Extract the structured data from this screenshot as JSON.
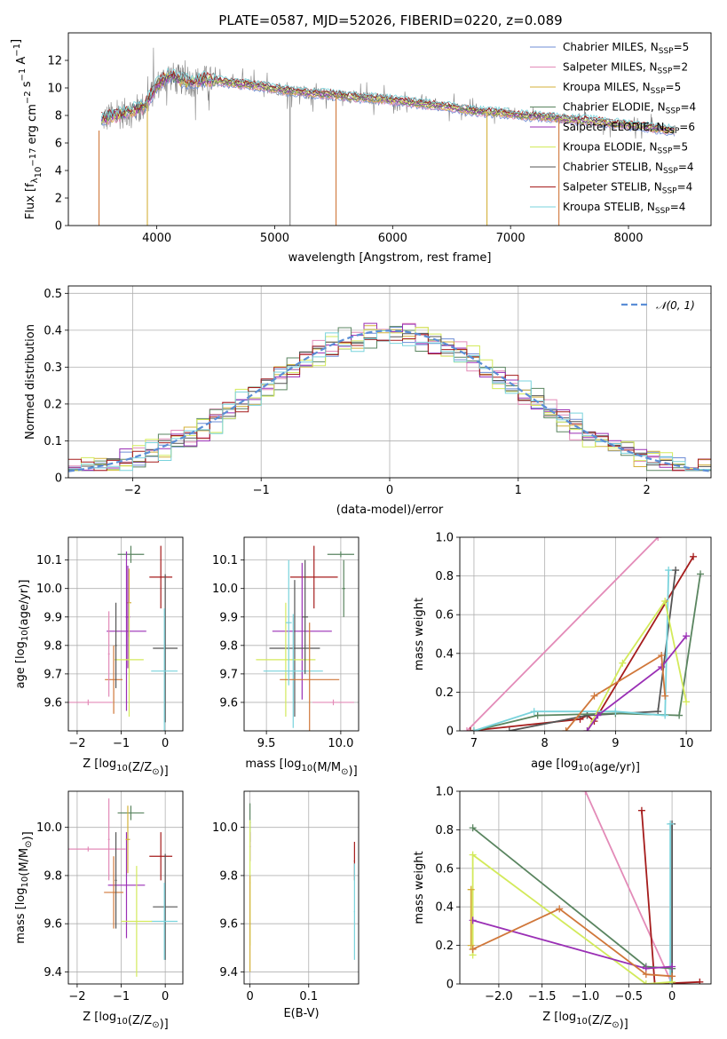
{
  "title": "PLATE=0587, MJD=52026, FIBERID=0220, z=0.089",
  "colors": {
    "chabrier_miles": "#6f8ed6",
    "salpeter_miles": "#e38bb8",
    "kroupa_miles": "#d4b13a",
    "chabrier_elodie": "#5a8560",
    "salpeter_elodie": "#9a2fb5",
    "kroupa_elodie": "#d3ea5b",
    "chabrier_stelib": "#555555",
    "salpeter_stelib": "#a51c1c",
    "kroupa_stelib": "#79d3dc",
    "orange": "#d0773a",
    "gray_spec": "#808080",
    "normal": "#5b8ed6"
  },
  "chart_data": [
    {
      "id": "spectrum",
      "type": "line",
      "xlabel": "wavelength [Angstrom, rest frame]",
      "ylabel": "Flux [f",
      "ylabel_parts": [
        "Flux [f",
        "λ",
        "10",
        "−17",
        " erg cm",
        "−2",
        " s",
        "−1",
        " A",
        "−1",
        "]"
      ],
      "xlim": [
        3250,
        8700
      ],
      "ylim": [
        0,
        14
      ],
      "xticks": [
        4000,
        5000,
        6000,
        7000,
        8000
      ],
      "yticks": [
        0,
        2,
        4,
        6,
        8,
        10,
        12
      ],
      "legend": [
        {
          "text": "Chabrier MILES, N",
          "sub": "SSP",
          "tail": "=5",
          "color": "#6f8ed6"
        },
        {
          "text": "Salpeter MILES, N",
          "sub": "SSP",
          "tail": "=2",
          "color": "#e38bb8"
        },
        {
          "text": "Kroupa MILES, N",
          "sub": "SSP",
          "tail": "=5",
          "color": "#d4b13a"
        },
        {
          "text": "Chabrier ELODIE, N",
          "sub": "SSP",
          "tail": "=4",
          "color": "#5a8560"
        },
        {
          "text": "Salpeter ELODIE, N",
          "sub": "SSP",
          "tail": "=6",
          "color": "#9a2fb5"
        },
        {
          "text": "Kroupa ELODIE, N",
          "sub": "SSP",
          "tail": "=5",
          "color": "#d3ea5b"
        },
        {
          "text": "Chabrier STELIB, N",
          "sub": "SSP",
          "tail": "=4",
          "color": "#555555"
        },
        {
          "text": "Salpeter STELIB, N",
          "sub": "SSP",
          "tail": "=4",
          "color": "#a51c1c"
        },
        {
          "text": "Kroupa STELIB, N",
          "sub": "SSP",
          "tail": "=4",
          "color": "#79d3dc"
        }
      ],
      "model_curve": {
        "x": [
          3530,
          3600,
          3700,
          3800,
          3900,
          4000,
          4100,
          4200,
          4300,
          4400,
          4500,
          4700,
          4900,
          5100,
          5300,
          5500,
          5700,
          5900,
          6100,
          6300,
          6500,
          6700,
          6900,
          7100,
          7300,
          7500,
          7700,
          7900,
          8100,
          8300,
          8400
        ],
        "y": [
          7.7,
          7.9,
          8.1,
          8.4,
          8.7,
          10.2,
          10.9,
          10.6,
          10.4,
          10.6,
          10.5,
          10.3,
          10.1,
          9.8,
          9.6,
          9.5,
          9.3,
          9.2,
          9.0,
          8.8,
          8.6,
          8.3,
          8.2,
          8.0,
          7.9,
          7.7,
          7.6,
          7.4,
          7.2,
          7.0,
          6.9
        ]
      },
      "dips": [
        {
          "x": 3510,
          "y": 0.0,
          "color": "#d0773a"
        },
        {
          "x": 3920,
          "y": 0.0,
          "color": "#d4b13a"
        },
        {
          "x": 5130,
          "y": 0.0,
          "color": "#808080"
        },
        {
          "x": 5520,
          "y": 0.0,
          "color": "#d0773a"
        },
        {
          "x": 6800,
          "y": 0.0,
          "color": "#d4b13a"
        },
        {
          "x": 7410,
          "y": 0.0,
          "color": "#d0773a"
        }
      ]
    },
    {
      "id": "residuals",
      "type": "histogram",
      "xlabel": "(data-model)/error",
      "ylabel": "Normed distribution",
      "xlim": [
        -2.5,
        2.5
      ],
      "ylim": [
        0,
        0.52
      ],
      "xticks": [
        -2,
        -1,
        0,
        1,
        2
      ],
      "yticks": [
        0.0,
        0.1,
        0.2,
        0.3,
        0.4,
        0.5
      ],
      "legend_label": "𝒩(0, 1)",
      "bin_width": 0.1,
      "bin_start": -2.5,
      "series_offsets": [
        0.0,
        0.012,
        -0.01,
        0.018,
        -0.015,
        0.02,
        -0.006,
        0.009,
        -0.02
      ]
    },
    {
      "id": "age_vs_Z",
      "type": "errorbar",
      "xlabel": "Z [log",
      "xlabel_parts": [
        "Z [log",
        "10",
        "(Z/Z",
        "⊙",
        ")]"
      ],
      "ylabel_parts": [
        "age  [log",
        "10",
        "(age/yr)]"
      ],
      "xlim": [
        -2.2,
        0.4
      ],
      "ylim": [
        9.5,
        10.18
      ],
      "xticks": [
        -2,
        -1,
        0
      ],
      "yticks": [
        9.6,
        9.7,
        9.8,
        9.9,
        10.0,
        10.1
      ],
      "points": [
        {
          "x": -0.78,
          "xerr": 0.3,
          "y": 10.12,
          "yerr": 0.03,
          "color": "#5a8560"
        },
        {
          "x": -0.82,
          "xerr": 0.05,
          "y": 9.95,
          "yerr": 0.12,
          "color": "#d4b13a"
        },
        {
          "x": -0.85,
          "xerr": 0.05,
          "y": 9.9,
          "yerr": 0.18,
          "color": "#9a2fb5"
        },
        {
          "x": -0.1,
          "xerr": 0.26,
          "y": 10.04,
          "yerr": 0.11,
          "color": "#a51c1c"
        },
        {
          "x": 0.0,
          "xerr": 0.28,
          "y": 9.79,
          "yerr": 0.26,
          "color": "#555555"
        },
        {
          "x": -0.02,
          "xerr": 0.3,
          "y": 9.71,
          "yerr": 0.22,
          "color": "#79d3dc"
        },
        {
          "x": -0.88,
          "xerr": 0.45,
          "y": 9.85,
          "yerr": 0.28,
          "color": "#9a2fb5"
        },
        {
          "x": -0.82,
          "xerr": 0.33,
          "y": 9.75,
          "yerr": 0.2,
          "color": "#d3ea5b"
        },
        {
          "x": -1.17,
          "xerr": 0.2,
          "y": 9.68,
          "yerr": 0.12,
          "color": "#d0773a"
        },
        {
          "x": -1.75,
          "xerr": 0.55,
          "y": 9.6,
          "yerr": 0.01,
          "color": "#e38bb8"
        },
        {
          "x": -1.28,
          "xerr": 0.02,
          "y": 9.77,
          "yerr": 0.15,
          "color": "#e38bb8"
        },
        {
          "x": -1.12,
          "xerr": 0.02,
          "y": 9.8,
          "yerr": 0.15,
          "color": "#555555"
        }
      ]
    },
    {
      "id": "age_vs_mass",
      "type": "errorbar",
      "xlabel_parts": [
        "mass [log",
        "10",
        "(M/M",
        "⊙",
        ")]"
      ],
      "xlim": [
        9.35,
        10.12
      ],
      "ylim": [
        9.5,
        10.18
      ],
      "xticks": [
        9.5,
        10.0
      ],
      "yticks": [
        9.6,
        9.7,
        9.8,
        9.9,
        10.0,
        10.1
      ],
      "points": [
        {
          "x": 10.0,
          "xerr": 0.09,
          "y": 10.12,
          "yerr": 0.01,
          "color": "#5a8560"
        },
        {
          "x": 10.02,
          "xerr": 0.01,
          "y": 10.0,
          "yerr": 0.1,
          "color": "#5a8560"
        },
        {
          "x": 9.82,
          "xerr": 0.16,
          "y": 10.04,
          "yerr": 0.11,
          "color": "#a51c1c"
        },
        {
          "x": 9.74,
          "xerr": 0.2,
          "y": 9.85,
          "yerr": 0.24,
          "color": "#9a2fb5"
        },
        {
          "x": 9.69,
          "xerr": 0.17,
          "y": 9.79,
          "yerr": 0.24,
          "color": "#555555"
        },
        {
          "x": 9.63,
          "xerr": 0.2,
          "y": 9.75,
          "yerr": 0.2,
          "color": "#d3ea5b"
        },
        {
          "x": 9.68,
          "xerr": 0.2,
          "y": 9.71,
          "yerr": 0.2,
          "color": "#79d3dc"
        },
        {
          "x": 9.79,
          "xerr": 0.2,
          "y": 9.68,
          "yerr": 0.2,
          "color": "#d0773a"
        },
        {
          "x": 9.95,
          "xerr": 0.14,
          "y": 9.6,
          "yerr": 0.01,
          "color": "#e38bb8"
        },
        {
          "x": 9.65,
          "xerr": 0.02,
          "y": 9.88,
          "yerr": 0.22,
          "color": "#79d3dc"
        },
        {
          "x": 9.76,
          "xerr": 0.02,
          "y": 9.9,
          "yerr": 0.2,
          "color": "#555555"
        }
      ]
    },
    {
      "id": "mass_weight_vs_age",
      "type": "line",
      "xlabel_parts": [
        "age  [log",
        "10",
        "(age/yr)]"
      ],
      "ylabel": "mass weight",
      "xlim": [
        6.8,
        10.35
      ],
      "ylim": [
        0,
        1.0
      ],
      "xticks": [
        7,
        8,
        9,
        10
      ],
      "yticks": [
        0.0,
        0.2,
        0.4,
        0.6,
        0.8,
        1.0
      ],
      "series": [
        {
          "color": "#e38bb8",
          "x": [
            6.9,
            9.6
          ],
          "y": [
            0.0,
            1.0
          ]
        },
        {
          "color": "#a51c1c",
          "x": [
            6.95,
            8.5,
            8.6,
            8.7,
            10.1
          ],
          "y": [
            0.0,
            0.06,
            0.08,
            0.05,
            0.9
          ]
        },
        {
          "color": "#555555",
          "x": [
            7.5,
            8.6,
            9.6,
            9.85
          ],
          "y": [
            0.0,
            0.08,
            0.1,
            0.83
          ]
        },
        {
          "color": "#5a8560",
          "x": [
            7.0,
            7.9,
            9.0,
            9.9,
            10.2
          ],
          "y": [
            0.0,
            0.08,
            0.09,
            0.08,
            0.81
          ]
        },
        {
          "color": "#79d3dc",
          "x": [
            7.0,
            7.85,
            9.0,
            9.7,
            9.75
          ],
          "y": [
            0.0,
            0.1,
            0.1,
            0.08,
            0.83
          ]
        },
        {
          "color": "#d3ea5b",
          "x": [
            8.6,
            9.1,
            9.7,
            10.0
          ],
          "y": [
            0.0,
            0.35,
            0.67,
            0.15
          ]
        },
        {
          "color": "#9a2fb5",
          "x": [
            8.6,
            8.75,
            9.65,
            10.0
          ],
          "y": [
            0.0,
            0.08,
            0.33,
            0.49
          ]
        },
        {
          "color": "#d0773a",
          "x": [
            8.3,
            8.7,
            9.65,
            9.7
          ],
          "y": [
            0.0,
            0.18,
            0.39,
            0.18
          ]
        }
      ]
    },
    {
      "id": "mass_vs_Z",
      "type": "errorbar",
      "xlabel_parts": [
        "Z [log",
        "10",
        "(Z/Z",
        "⊙",
        ")]"
      ],
      "ylabel_parts": [
        "mass [log",
        "10",
        "(M/M",
        "⊙",
        ")]"
      ],
      "xlim": [
        -2.2,
        0.4
      ],
      "ylim": [
        9.35,
        10.15
      ],
      "xticks": [
        -2,
        -1,
        0
      ],
      "yticks": [
        9.4,
        9.6,
        9.8,
        10.0
      ],
      "points": [
        {
          "x": -0.78,
          "xerr": 0.3,
          "y": 10.06,
          "yerr": 0.03,
          "color": "#5a8560"
        },
        {
          "x": -1.75,
          "xerr": 0.85,
          "y": 9.91,
          "yerr": 0.01,
          "color": "#e38bb8"
        },
        {
          "x": -1.28,
          "xerr": 0.02,
          "y": 9.95,
          "yerr": 0.17,
          "color": "#e38bb8"
        },
        {
          "x": -0.1,
          "xerr": 0.26,
          "y": 9.88,
          "yerr": 0.1,
          "color": "#a51c1c"
        },
        {
          "x": -0.88,
          "xerr": 0.42,
          "y": 9.76,
          "yerr": 0.22,
          "color": "#9a2fb5"
        },
        {
          "x": -0.85,
          "xerr": 0.05,
          "y": 9.95,
          "yerr": 0.14,
          "color": "#d4b13a"
        },
        {
          "x": -1.17,
          "xerr": 0.22,
          "y": 9.73,
          "yerr": 0.15,
          "color": "#d0773a"
        },
        {
          "x": 0.0,
          "xerr": 0.28,
          "y": 9.67,
          "yerr": 0.22,
          "color": "#555555"
        },
        {
          "x": -0.02,
          "xerr": 0.3,
          "y": 9.61,
          "yerr": 0.16,
          "color": "#79d3dc"
        },
        {
          "x": -0.65,
          "xerr": 0.35,
          "y": 9.61,
          "yerr": 0.23,
          "color": "#d3ea5b"
        },
        {
          "x": -1.12,
          "xerr": 0.02,
          "y": 9.78,
          "yerr": 0.2,
          "color": "#555555"
        }
      ]
    },
    {
      "id": "mass_vs_ebv",
      "type": "errorbar",
      "xlabel": "E(B-V)",
      "xlim": [
        -0.01,
        0.185
      ],
      "ylim": [
        9.35,
        10.15
      ],
      "xticks": [
        0.0,
        0.1
      ],
      "yticks": [
        9.4,
        9.6,
        9.8,
        10.0
      ],
      "points": [
        {
          "x": 0.0,
          "xerr": 0.001,
          "y": 10.02,
          "yerr": 0.08,
          "color": "#5a8560"
        },
        {
          "x": 0.0,
          "xerr": 0.001,
          "y": 9.92,
          "yerr": 0.06,
          "color": "#9a2fb5"
        },
        {
          "x": 0.0,
          "xerr": 0.001,
          "y": 9.77,
          "yerr": 0.26,
          "color": "#d3ea5b"
        },
        {
          "x": 0.0,
          "xerr": 0.001,
          "y": 9.6,
          "yerr": 0.2,
          "color": "#d4b13a"
        },
        {
          "x": 0.178,
          "xerr": 0.001,
          "y": 9.86,
          "yerr": 0.08,
          "color": "#a51c1c"
        },
        {
          "x": 0.178,
          "xerr": 0.001,
          "y": 9.65,
          "yerr": 0.2,
          "color": "#79d3dc"
        }
      ]
    },
    {
      "id": "mass_weight_vs_Z",
      "type": "line",
      "xlabel_parts": [
        "Z [log",
        "10",
        "(Z/Z",
        "⊙",
        ")]"
      ],
      "ylabel": "mass weight",
      "xlim": [
        -2.45,
        0.45
      ],
      "ylim": [
        0,
        1.0
      ],
      "xticks": [
        -2.0,
        -1.5,
        -1.0,
        -0.5,
        0.0
      ],
      "yticks": [
        0.0,
        0.2,
        0.4,
        0.6,
        0.8,
        1.0
      ],
      "series": [
        {
          "color": "#e38bb8",
          "x": [
            -1.0,
            0.0
          ],
          "y": [
            1.0,
            0.0
          ]
        },
        {
          "color": "#a51c1c",
          "x": [
            -0.35,
            -0.2,
            0.32
          ],
          "y": [
            0.9,
            0.0,
            0.01
          ]
        },
        {
          "color": "#555555",
          "x": [
            0.0,
            0.0,
            0.0
          ],
          "y": [
            0.83,
            0.08,
            0.0
          ]
        },
        {
          "color": "#79d3dc",
          "x": [
            -0.02,
            -0.02
          ],
          "y": [
            0.83,
            0.0
          ]
        },
        {
          "color": "#5a8560",
          "x": [
            -2.3,
            -0.3,
            0.0
          ],
          "y": [
            0.81,
            0.09,
            0.08
          ]
        },
        {
          "color": "#d3ea5b",
          "x": [
            -2.3,
            -2.3,
            -0.3,
            0.0
          ],
          "y": [
            0.15,
            0.67,
            0.0,
            0.01
          ]
        },
        {
          "color": "#9a2fb5",
          "x": [
            -2.3,
            -0.3,
            0.0
          ],
          "y": [
            0.33,
            0.08,
            0.09
          ]
        },
        {
          "color": "#d0773a",
          "x": [
            -2.3,
            -1.3,
            -0.3,
            0.0
          ],
          "y": [
            0.18,
            0.39,
            0.05,
            0.04
          ]
        },
        {
          "color": "#d4b13a",
          "x": [
            -2.32,
            -2.32
          ],
          "y": [
            0.49,
            0.2
          ]
        }
      ]
    }
  ]
}
